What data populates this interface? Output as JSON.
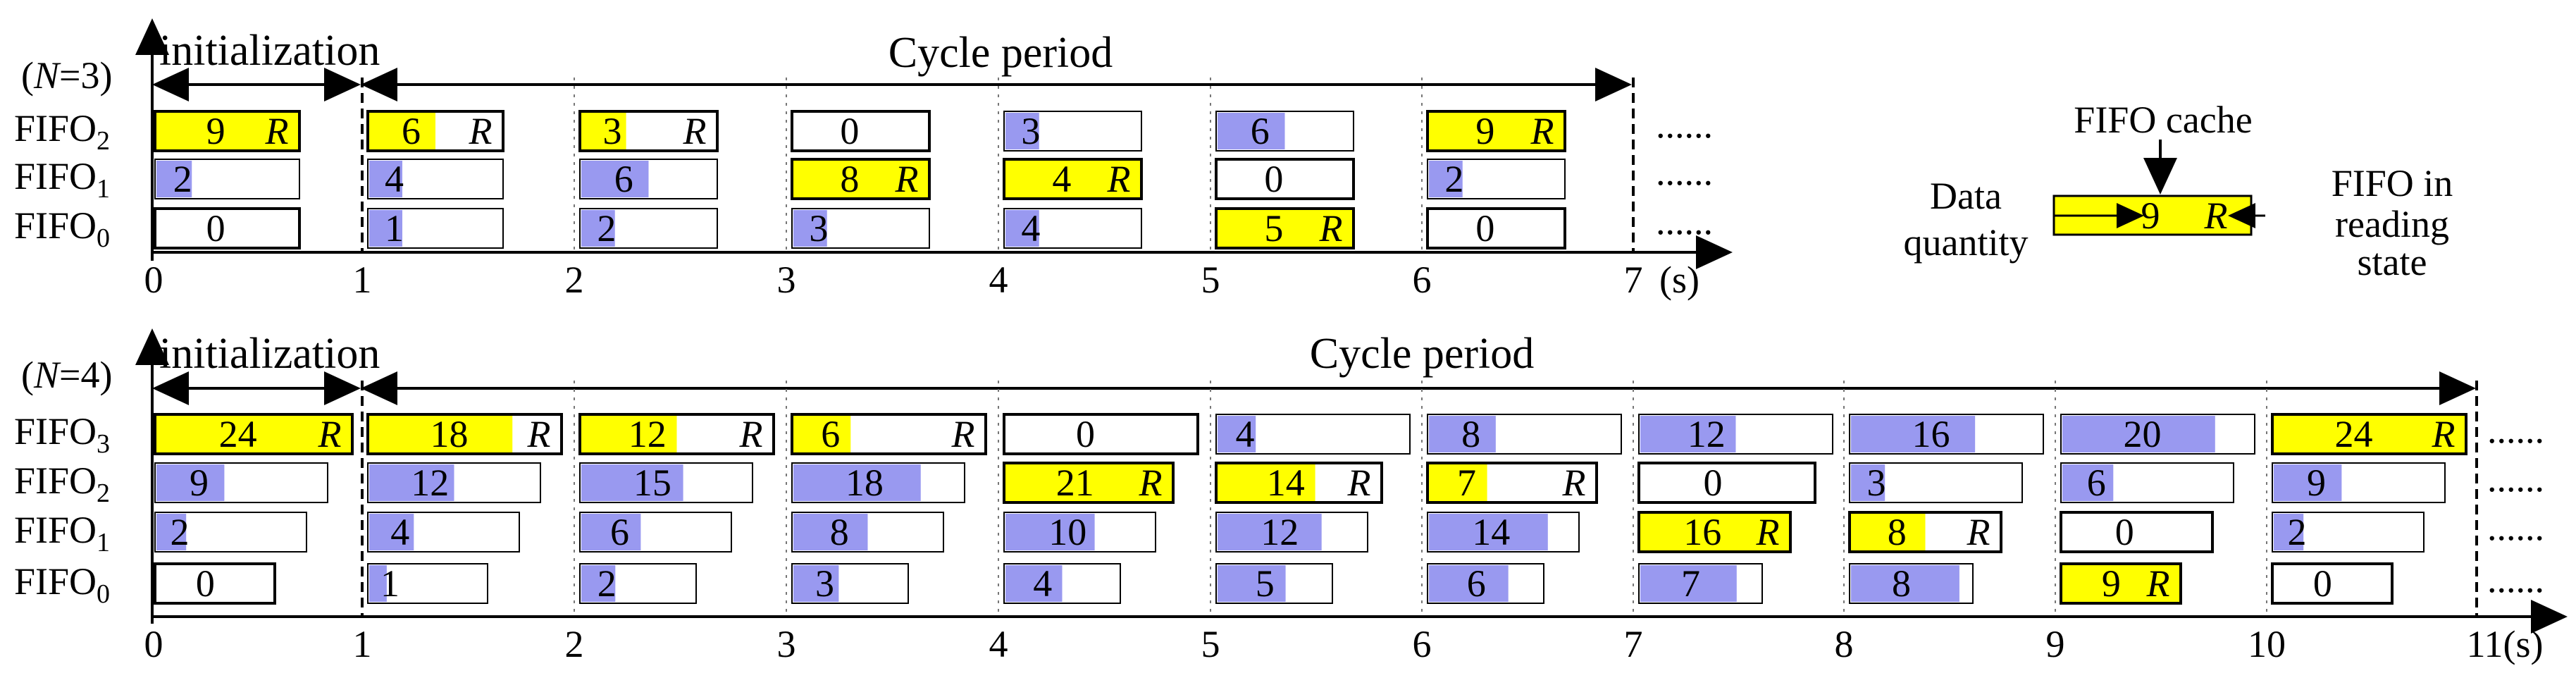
{
  "colors": {
    "fill": "#9999f0",
    "read": "#ffff00",
    "empty": "#ffffff",
    "stroke": "#000000"
  },
  "panel_top": {
    "n_label": "(N=3)",
    "n_prefix": "(",
    "n_var": "N",
    "n_suffix": "=3)",
    "init_label": "initialization",
    "cycle_label": "Cycle period",
    "rows": [
      {
        "name": "FIFO",
        "sub": "2"
      },
      {
        "name": "FIFO",
        "sub": "1"
      },
      {
        "name": "FIFO",
        "sub": "0"
      }
    ],
    "ticks": [
      "0",
      "1",
      "2",
      "3",
      "4",
      "5",
      "6",
      "7"
    ],
    "unit": "(s)",
    "ellipsis": "......",
    "capacity": 9,
    "cells": [
      [
        {
          "v": "9",
          "s": "read",
          "r": true,
          "f": 1.0
        },
        {
          "v": "6",
          "s": "read",
          "r": true,
          "f": 0.5
        },
        {
          "v": "3",
          "s": "read",
          "r": true,
          "f": 0.333
        },
        {
          "v": "0",
          "s": "empty",
          "r": false,
          "f": 0
        },
        {
          "v": "3",
          "s": "fill",
          "r": false,
          "f": 0.25
        },
        {
          "v": "6",
          "s": "fill",
          "r": false,
          "f": 0.5
        },
        {
          "v": "9",
          "s": "read",
          "r": true,
          "f": 1.0
        }
      ],
      [
        {
          "v": "2",
          "s": "fill",
          "r": false,
          "f": 0.25
        },
        {
          "v": "4",
          "s": "fill",
          "r": false,
          "f": 0.25
        },
        {
          "v": "6",
          "s": "fill",
          "r": false,
          "f": 0.5
        },
        {
          "v": "8",
          "s": "read",
          "r": true,
          "f": 1.0
        },
        {
          "v": "4",
          "s": "read",
          "r": true,
          "f": 1.0
        },
        {
          "v": "0",
          "s": "empty",
          "r": false,
          "f": 0
        },
        {
          "v": "2",
          "s": "fill",
          "r": false,
          "f": 0.25
        }
      ],
      [
        {
          "v": "0",
          "s": "empty",
          "r": false,
          "f": 0
        },
        {
          "v": "1",
          "s": "fill",
          "r": false,
          "f": 0.25
        },
        {
          "v": "2",
          "s": "fill",
          "r": false,
          "f": 0.25
        },
        {
          "v": "3",
          "s": "fill",
          "r": false,
          "f": 0.25
        },
        {
          "v": "4",
          "s": "fill",
          "r": false,
          "f": 0.25
        },
        {
          "v": "5",
          "s": "read",
          "r": true,
          "f": 1.0
        },
        {
          "v": "0",
          "s": "empty",
          "r": false,
          "f": 0
        }
      ]
    ]
  },
  "legend": {
    "cache_label": "FIFO  cache",
    "data_label_1": "Data",
    "data_label_2": "quantity",
    "state_label_1": "FIFO in",
    "state_label_2": "reading",
    "state_label_3": "state",
    "value": "9",
    "flag": "R"
  },
  "panel_bottom": {
    "n_prefix": "(",
    "n_var": "N",
    "n_suffix": "=4)",
    "init_label": "initialization",
    "cycle_label": "Cycle period",
    "rows": [
      {
        "name": "FIFO",
        "sub": "3"
      },
      {
        "name": "FIFO",
        "sub": "2"
      },
      {
        "name": "FIFO",
        "sub": "1"
      },
      {
        "name": "FIFO",
        "sub": "0"
      }
    ],
    "ticks": [
      "0",
      "1",
      "2",
      "3",
      "4",
      "5",
      "6",
      "7",
      "8",
      "9",
      "10",
      "11(s)"
    ],
    "ellipsis": "......",
    "cells": [
      [
        {
          "v": "24",
          "s": "read",
          "r": true,
          "f": 1.0
        },
        {
          "v": "18",
          "s": "read",
          "r": true,
          "f": 0.75
        },
        {
          "v": "12",
          "s": "read",
          "r": true,
          "f": 0.5
        },
        {
          "v": "6",
          "s": "read",
          "r": true,
          "f": 0.3
        },
        {
          "v": "0",
          "s": "empty",
          "r": false,
          "f": 0
        },
        {
          "v": "4",
          "s": "fill",
          "r": false,
          "f": 0.2
        },
        {
          "v": "8",
          "s": "fill",
          "r": false,
          "f": 0.35
        },
        {
          "v": "12",
          "s": "fill",
          "r": false,
          "f": 0.5
        },
        {
          "v": "16",
          "s": "fill",
          "r": false,
          "f": 0.65
        },
        {
          "v": "20",
          "s": "fill",
          "r": false,
          "f": 0.8
        },
        {
          "v": "24",
          "s": "read",
          "r": true,
          "f": 1.0
        }
      ],
      [
        {
          "v": "9",
          "s": "fill",
          "r": false,
          "f": 0.4
        },
        {
          "v": "12",
          "s": "fill",
          "r": false,
          "f": 0.5
        },
        {
          "v": "15",
          "s": "fill",
          "r": false,
          "f": 0.6
        },
        {
          "v": "18",
          "s": "fill",
          "r": false,
          "f": 0.75
        },
        {
          "v": "21",
          "s": "read",
          "r": true,
          "f": 1.0
        },
        {
          "v": "14",
          "s": "read",
          "r": true,
          "f": 0.6
        },
        {
          "v": "7",
          "s": "read",
          "r": true,
          "f": 0.35
        },
        {
          "v": "0",
          "s": "empty",
          "r": false,
          "f": 0
        },
        {
          "v": "3",
          "s": "fill",
          "r": false,
          "f": 0.2
        },
        {
          "v": "6",
          "s": "fill",
          "r": false,
          "f": 0.3
        },
        {
          "v": "9",
          "s": "fill",
          "r": false,
          "f": 0.4
        }
      ],
      [
        {
          "v": "2",
          "s": "fill",
          "r": false,
          "f": 0.2
        },
        {
          "v": "4",
          "s": "fill",
          "r": false,
          "f": 0.3
        },
        {
          "v": "6",
          "s": "fill",
          "r": false,
          "f": 0.4
        },
        {
          "v": "8",
          "s": "fill",
          "r": false,
          "f": 0.5
        },
        {
          "v": "10",
          "s": "fill",
          "r": false,
          "f": 0.6
        },
        {
          "v": "12",
          "s": "fill",
          "r": false,
          "f": 0.7
        },
        {
          "v": "14",
          "s": "fill",
          "r": false,
          "f": 0.8
        },
        {
          "v": "16",
          "s": "read",
          "r": true,
          "f": 1.0
        },
        {
          "v": "8",
          "s": "read",
          "r": true,
          "f": 0.5
        },
        {
          "v": "0",
          "s": "empty",
          "r": false,
          "f": 0
        },
        {
          "v": "2",
          "s": "fill",
          "r": false,
          "f": 0.2
        }
      ],
      [
        {
          "v": "0",
          "s": "empty",
          "r": false,
          "f": 0
        },
        {
          "v": "1",
          "s": "fill",
          "r": false,
          "f": 0.15
        },
        {
          "v": "2",
          "s": "fill",
          "r": false,
          "f": 0.3
        },
        {
          "v": "3",
          "s": "fill",
          "r": false,
          "f": 0.4
        },
        {
          "v": "4",
          "s": "fill",
          "r": false,
          "f": 0.5
        },
        {
          "v": "5",
          "s": "fill",
          "r": false,
          "f": 0.6
        },
        {
          "v": "6",
          "s": "fill",
          "r": false,
          "f": 0.7
        },
        {
          "v": "7",
          "s": "fill",
          "r": false,
          "f": 0.8
        },
        {
          "v": "8",
          "s": "fill",
          "r": false,
          "f": 0.9
        },
        {
          "v": "9",
          "s": "read",
          "r": true,
          "f": 1.0
        },
        {
          "v": "0",
          "s": "empty",
          "r": false,
          "f": 0
        }
      ]
    ]
  }
}
